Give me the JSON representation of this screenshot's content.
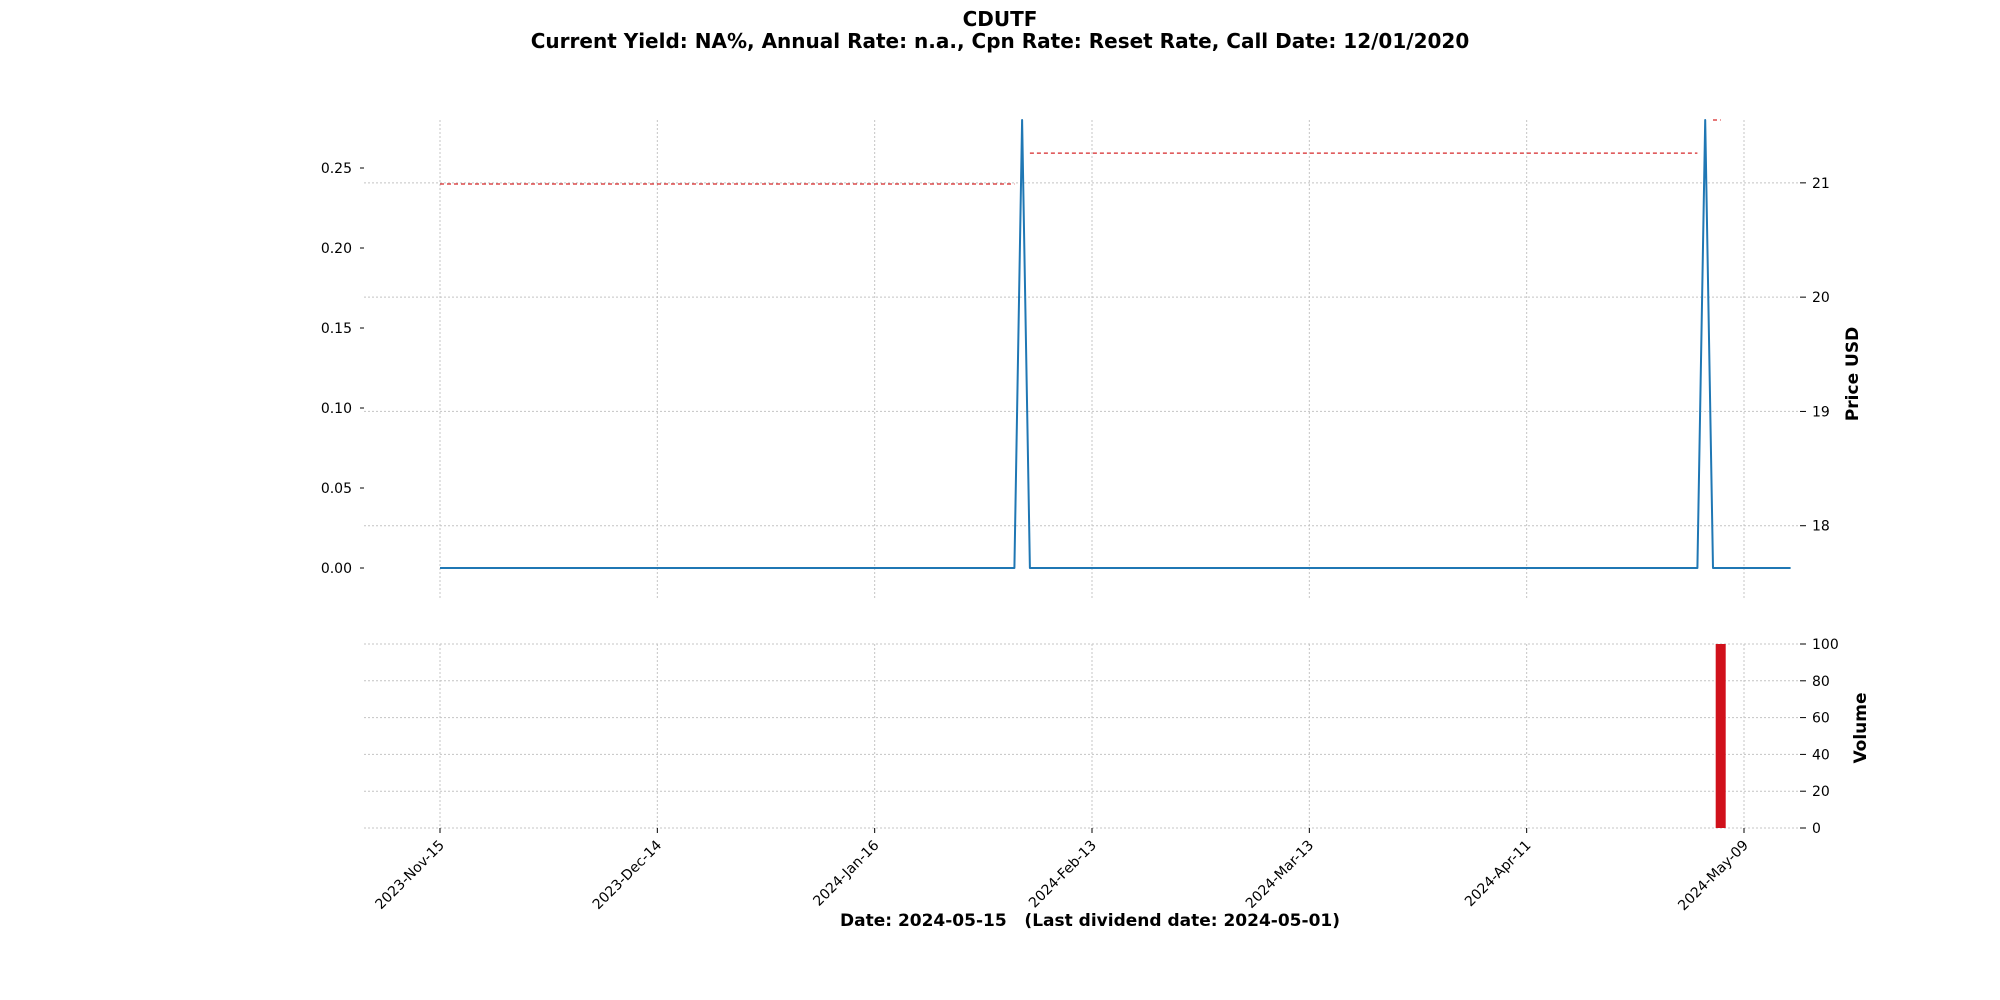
{
  "chart_data": [
    {
      "type": "line",
      "title": "CDUTF",
      "subtitle": "Current Yield: NA%, Annual Rate: n.a., Cpn Rate: Reset Rate, Call Date: 12/01/2020",
      "xlabel": "Date: 2024-05-15   (Last dividend date: 2024-05-01)",
      "x_tick_labels": [
        "2023-Nov-15",
        "2023-Dec-14",
        "2024-Jan-16",
        "2024-Feb-13",
        "2024-Mar-13",
        "2024-Apr-11",
        "2024-May-09"
      ],
      "y_left": {
        "label": "",
        "ticks": [
          "0.00",
          "0.05",
          "0.10",
          "0.15",
          "0.20",
          "0.25"
        ],
        "lim": [
          -0.02,
          0.28
        ]
      },
      "y_right": {
        "label": "Price USD",
        "ticks": [
          "18",
          "19",
          "20",
          "21"
        ],
        "lim": [
          17.35,
          21.55
        ]
      },
      "grid": true,
      "series": [
        {
          "axis": "left",
          "color": "#1f77b4",
          "style": "solid",
          "points": [
            [
              "2023-11-15",
              0.0
            ],
            [
              "2024-02-03",
              0.0
            ],
            [
              "2024-02-04",
              0.28
            ],
            [
              "2024-02-05",
              0.0
            ],
            [
              "2024-05-03",
              0.0
            ],
            [
              "2024-05-04",
              0.28
            ],
            [
              "2024-05-05",
              0.0
            ],
            [
              "2024-05-15",
              0.0
            ]
          ]
        },
        {
          "axis": "right",
          "color": "#d62728",
          "style": "dashed",
          "segments": [
            {
              "points": [
                [
                  "2023-11-15",
                  20.99
                ],
                [
                  "2024-02-03",
                  20.99
                ]
              ]
            },
            {
              "points": [
                [
                  "2024-02-05",
                  21.26
                ],
                [
                  "2024-05-03",
                  21.26
                ]
              ]
            },
            {
              "points": [
                [
                  "2024-05-05",
                  21.55
                ],
                [
                  "2024-05-06",
                  21.55
                ]
              ]
            }
          ]
        }
      ]
    },
    {
      "type": "bar",
      "ylabel": "Volume",
      "ylim": [
        0,
        100
      ],
      "y_ticks": [
        "0",
        "20",
        "40",
        "60",
        "80",
        "100"
      ],
      "grid": true,
      "color": "#d0111b",
      "bars": [
        {
          "date": "2024-05-06",
          "value": 100
        }
      ]
    }
  ]
}
